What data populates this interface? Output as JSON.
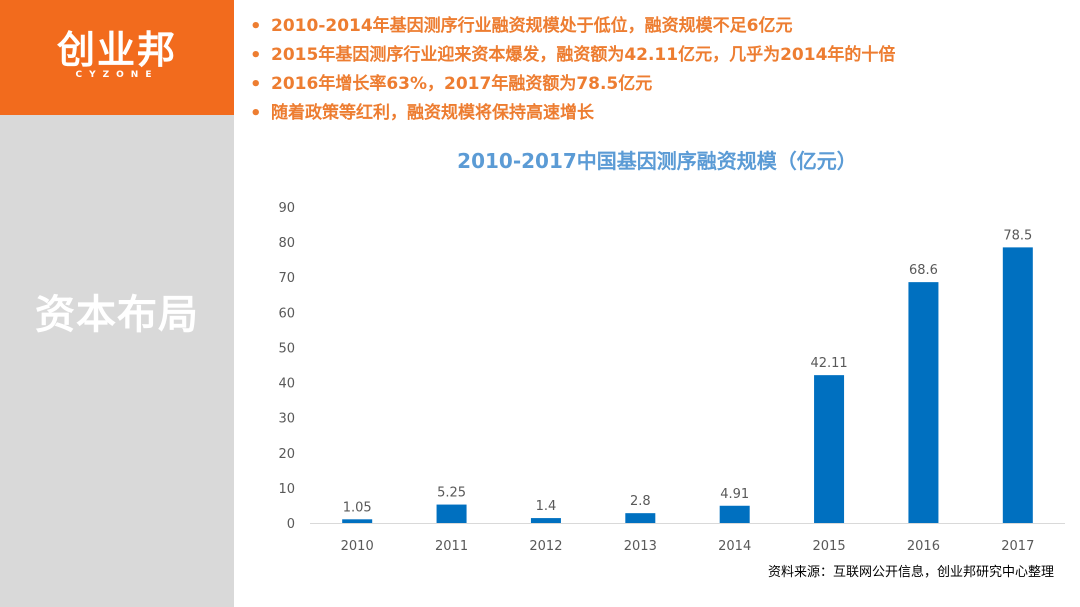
{
  "brand": {
    "name": "创业邦",
    "sub": "CYZONE"
  },
  "section_title": "资本布局",
  "bullets": [
    "2010-2014年基因测序行业融资规模处于低位，融资规模不足6亿元",
    "2015年基因测序行业迎来资本爆发，融资额为42.11亿元，几乎为2014年的十倍",
    "2016年增长率63%，2017年融资额为78.5亿元",
    "随着政策等红利，融资规模将保持高速增长"
  ],
  "colors": {
    "accent": "#f26b1d",
    "bullet_text": "#ed7d31",
    "bar": "#0070c0",
    "title": "#5b9bd5",
    "sidebar": "#d9d9d9"
  },
  "chart_data": {
    "type": "bar",
    "title": "2010-2017中国基因测序融资规模（亿元）",
    "categories": [
      "2010",
      "2011",
      "2012",
      "2013",
      "2014",
      "2015",
      "2016",
      "2017"
    ],
    "values": [
      1.05,
      5.25,
      1.4,
      2.8,
      4.91,
      42.11,
      68.6,
      78.5
    ],
    "value_labels": [
      "1.05",
      "5.25",
      "1.4",
      "2.8",
      "4.91",
      "42.11",
      "68.6",
      "78.5"
    ],
    "ylim": [
      0,
      90
    ],
    "yticks": [
      0,
      10,
      20,
      30,
      40,
      50,
      60,
      70,
      80,
      90
    ],
    "grid": false,
    "legend": "none"
  },
  "source": "资料来源：互联网公开信息，创业邦研究中心整理"
}
